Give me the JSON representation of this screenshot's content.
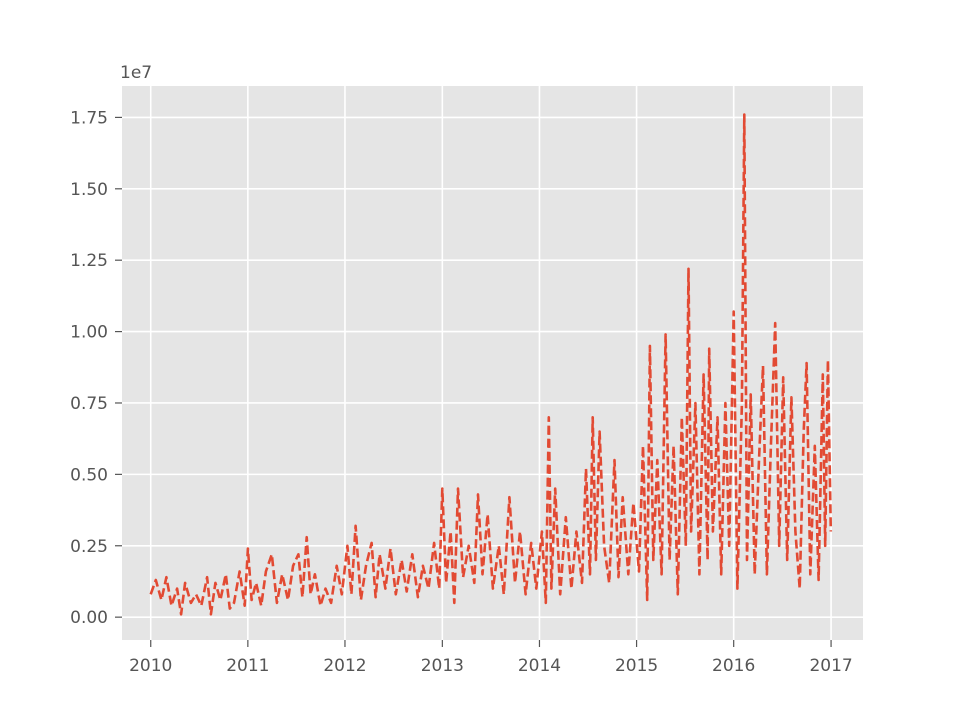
{
  "chart_data": {
    "type": "line",
    "title": "",
    "xlabel": "",
    "ylabel": "",
    "y_offset_label": "1e7",
    "y_multiplier": 10000000,
    "xlim": [
      "2009-09-15",
      "2017-05-01"
    ],
    "ylim": [
      -0.08,
      1.86
    ],
    "x_ticks": [
      {
        "date": "2010-01-01",
        "label": "2010"
      },
      {
        "date": "2011-01-01",
        "label": "2011"
      },
      {
        "date": "2012-01-01",
        "label": "2012"
      },
      {
        "date": "2013-01-01",
        "label": "2013"
      },
      {
        "date": "2014-01-01",
        "label": "2014"
      },
      {
        "date": "2015-01-01",
        "label": "2015"
      },
      {
        "date": "2016-01-01",
        "label": "2016"
      },
      {
        "date": "2017-01-01",
        "label": "2017"
      }
    ],
    "y_ticks": [
      {
        "value": 0.0,
        "label": "0.00"
      },
      {
        "value": 0.25,
        "label": "0.25"
      },
      {
        "value": 0.5,
        "label": "0.50"
      },
      {
        "value": 0.75,
        "label": "0.75"
      },
      {
        "value": 1.0,
        "label": "1.00"
      },
      {
        "value": 1.25,
        "label": "1.25"
      },
      {
        "value": 1.5,
        "label": "1.50"
      },
      {
        "value": 1.75,
        "label": "1.75"
      }
    ],
    "grid": true,
    "series": [
      {
        "line_style": "dashed",
        "color": "#E24A33",
        "points": [
          [
            "2010-01-01",
            0.08
          ],
          [
            "2010-01-20",
            0.13
          ],
          [
            "2010-02-10",
            0.06
          ],
          [
            "2010-03-01",
            0.14
          ],
          [
            "2010-03-20",
            0.04
          ],
          [
            "2010-04-10",
            0.1
          ],
          [
            "2010-04-25",
            0.01
          ],
          [
            "2010-05-10",
            0.12
          ],
          [
            "2010-06-01",
            0.05
          ],
          [
            "2010-06-20",
            0.08
          ],
          [
            "2010-07-10",
            0.04
          ],
          [
            "2010-08-01",
            0.14
          ],
          [
            "2010-08-15",
            0.01
          ],
          [
            "2010-09-01",
            0.12
          ],
          [
            "2010-09-20",
            0.06
          ],
          [
            "2010-10-10",
            0.15
          ],
          [
            "2010-10-25",
            0.03
          ],
          [
            "2010-11-10",
            0.05
          ],
          [
            "2010-12-01",
            0.16
          ],
          [
            "2010-12-20",
            0.04
          ],
          [
            "2011-01-01",
            0.24
          ],
          [
            "2011-01-15",
            0.06
          ],
          [
            "2011-02-01",
            0.12
          ],
          [
            "2011-02-20",
            0.04
          ],
          [
            "2011-03-10",
            0.16
          ],
          [
            "2011-04-01",
            0.22
          ],
          [
            "2011-04-20",
            0.05
          ],
          [
            "2011-05-10",
            0.15
          ],
          [
            "2011-06-01",
            0.06
          ],
          [
            "2011-06-20",
            0.18
          ],
          [
            "2011-07-10",
            0.22
          ],
          [
            "2011-07-25",
            0.07
          ],
          [
            "2011-08-10",
            0.28
          ],
          [
            "2011-08-25",
            0.08
          ],
          [
            "2011-09-10",
            0.15
          ],
          [
            "2011-10-01",
            0.04
          ],
          [
            "2011-10-20",
            0.1
          ],
          [
            "2011-11-10",
            0.05
          ],
          [
            "2011-12-01",
            0.18
          ],
          [
            "2011-12-20",
            0.08
          ],
          [
            "2012-01-10",
            0.25
          ],
          [
            "2012-01-25",
            0.08
          ],
          [
            "2012-02-10",
            0.32
          ],
          [
            "2012-03-01",
            0.06
          ],
          [
            "2012-03-20",
            0.18
          ],
          [
            "2012-04-10",
            0.26
          ],
          [
            "2012-04-25",
            0.07
          ],
          [
            "2012-05-10",
            0.22
          ],
          [
            "2012-06-01",
            0.1
          ],
          [
            "2012-06-20",
            0.24
          ],
          [
            "2012-07-10",
            0.08
          ],
          [
            "2012-08-01",
            0.2
          ],
          [
            "2012-08-20",
            0.09
          ],
          [
            "2012-09-10",
            0.22
          ],
          [
            "2012-10-01",
            0.07
          ],
          [
            "2012-10-20",
            0.18
          ],
          [
            "2012-11-10",
            0.1
          ],
          [
            "2012-12-01",
            0.26
          ],
          [
            "2012-12-20",
            0.1
          ],
          [
            "2013-01-01",
            0.45
          ],
          [
            "2013-01-15",
            0.12
          ],
          [
            "2013-02-01",
            0.3
          ],
          [
            "2013-02-15",
            0.05
          ],
          [
            "2013-03-01",
            0.45
          ],
          [
            "2013-03-20",
            0.14
          ],
          [
            "2013-04-10",
            0.25
          ],
          [
            "2013-05-01",
            0.12
          ],
          [
            "2013-05-15",
            0.43
          ],
          [
            "2013-06-01",
            0.15
          ],
          [
            "2013-06-20",
            0.36
          ],
          [
            "2013-07-10",
            0.1
          ],
          [
            "2013-08-01",
            0.25
          ],
          [
            "2013-08-20",
            0.08
          ],
          [
            "2013-09-10",
            0.42
          ],
          [
            "2013-10-01",
            0.12
          ],
          [
            "2013-10-20",
            0.3
          ],
          [
            "2013-11-10",
            0.08
          ],
          [
            "2013-12-01",
            0.26
          ],
          [
            "2013-12-20",
            0.1
          ],
          [
            "2014-01-10",
            0.3
          ],
          [
            "2014-01-25",
            0.05
          ],
          [
            "2014-02-05",
            0.7
          ],
          [
            "2014-02-15",
            0.1
          ],
          [
            "2014-03-01",
            0.45
          ],
          [
            "2014-03-20",
            0.08
          ],
          [
            "2014-04-10",
            0.35
          ],
          [
            "2014-05-01",
            0.1
          ],
          [
            "2014-05-20",
            0.3
          ],
          [
            "2014-06-10",
            0.12
          ],
          [
            "2014-06-25",
            0.52
          ],
          [
            "2014-07-10",
            0.15
          ],
          [
            "2014-07-20",
            0.7
          ],
          [
            "2014-08-01",
            0.2
          ],
          [
            "2014-08-15",
            0.65
          ],
          [
            "2014-09-01",
            0.25
          ],
          [
            "2014-09-20",
            0.12
          ],
          [
            "2014-10-10",
            0.55
          ],
          [
            "2014-10-25",
            0.14
          ],
          [
            "2014-11-10",
            0.42
          ],
          [
            "2014-12-01",
            0.15
          ],
          [
            "2014-12-20",
            0.4
          ],
          [
            "2015-01-10",
            0.16
          ],
          [
            "2015-01-25",
            0.6
          ],
          [
            "2015-02-10",
            0.06
          ],
          [
            "2015-02-20",
            0.95
          ],
          [
            "2015-03-05",
            0.2
          ],
          [
            "2015-03-20",
            0.55
          ],
          [
            "2015-04-05",
            0.15
          ],
          [
            "2015-04-20",
            0.99
          ],
          [
            "2015-05-05",
            0.2
          ],
          [
            "2015-05-20",
            0.6
          ],
          [
            "2015-06-05",
            0.08
          ],
          [
            "2015-06-20",
            0.7
          ],
          [
            "2015-07-05",
            0.25
          ],
          [
            "2015-07-15",
            1.22
          ],
          [
            "2015-07-25",
            0.3
          ],
          [
            "2015-08-10",
            0.75
          ],
          [
            "2015-08-25",
            0.15
          ],
          [
            "2015-09-10",
            0.85
          ],
          [
            "2015-09-25",
            0.2
          ],
          [
            "2015-10-01",
            0.94
          ],
          [
            "2015-10-15",
            0.3
          ],
          [
            "2015-11-01",
            0.7
          ],
          [
            "2015-11-15",
            0.15
          ],
          [
            "2015-12-01",
            0.75
          ],
          [
            "2015-12-15",
            0.25
          ],
          [
            "2016-01-01",
            1.07
          ],
          [
            "2016-01-15",
            0.1
          ],
          [
            "2016-02-01",
            0.75
          ],
          [
            "2016-02-10",
            1.76
          ],
          [
            "2016-02-20",
            0.2
          ],
          [
            "2016-03-05",
            0.78
          ],
          [
            "2016-03-20",
            0.15
          ],
          [
            "2016-04-05",
            0.55
          ],
          [
            "2016-04-20",
            0.88
          ],
          [
            "2016-05-05",
            0.15
          ],
          [
            "2016-05-20",
            0.6
          ],
          [
            "2016-06-05",
            1.03
          ],
          [
            "2016-06-20",
            0.25
          ],
          [
            "2016-07-05",
            0.84
          ],
          [
            "2016-07-20",
            0.2
          ],
          [
            "2016-08-05",
            0.77
          ],
          [
            "2016-08-20",
            0.3
          ],
          [
            "2016-09-05",
            0.1
          ],
          [
            "2016-09-20",
            0.65
          ],
          [
            "2016-10-01",
            0.89
          ],
          [
            "2016-10-15",
            0.15
          ],
          [
            "2016-11-01",
            0.6
          ],
          [
            "2016-11-15",
            0.13
          ],
          [
            "2016-12-01",
            0.85
          ],
          [
            "2016-12-10",
            0.25
          ],
          [
            "2016-12-20",
            0.9
          ],
          [
            "2016-12-31",
            0.3
          ]
        ]
      }
    ]
  }
}
